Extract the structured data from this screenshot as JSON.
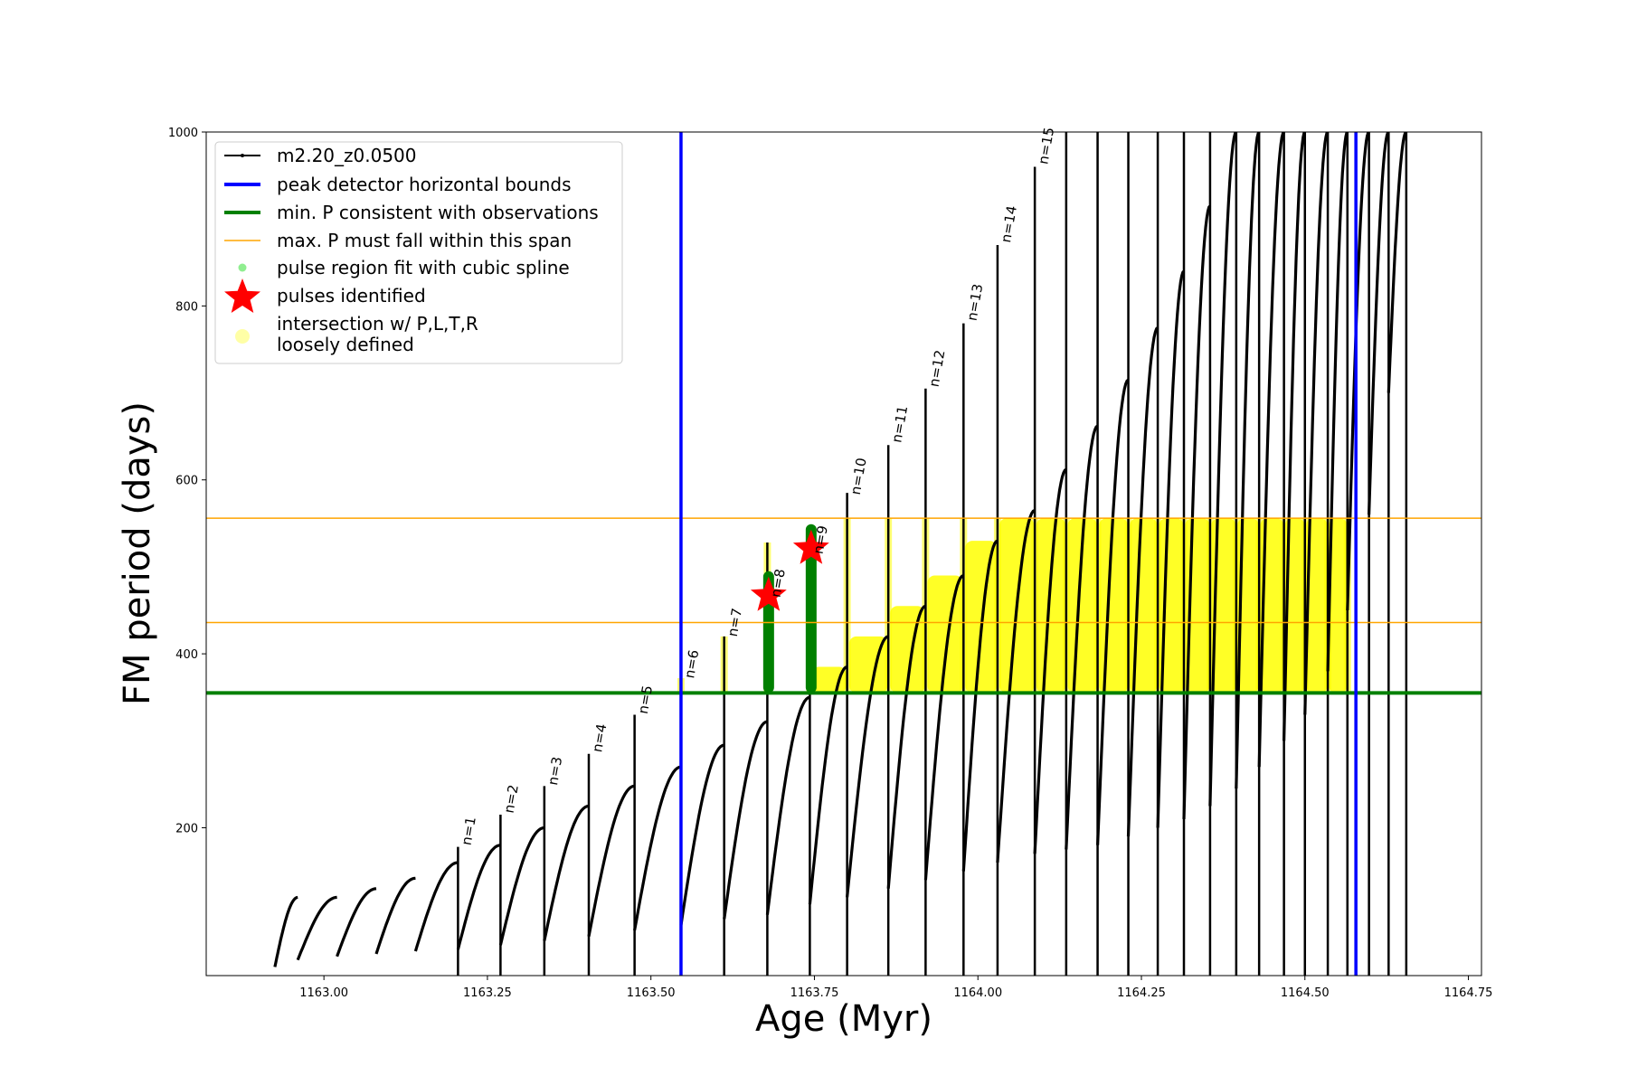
{
  "chart_data": {
    "type": "line",
    "xlabel": "Age (Myr)",
    "ylabel": "FM period (days)",
    "xlim": [
      1162.82,
      1164.77
    ],
    "ylim": [
      30,
      1000
    ],
    "x_ticks": [
      "1163.00",
      "1163.25",
      "1163.50",
      "1163.75",
      "1164.00",
      "1164.25",
      "1164.50",
      "1164.75"
    ],
    "y_ticks": [
      "200",
      "400",
      "600",
      "800",
      "1000"
    ],
    "grid": false,
    "legend_position": "upper-left",
    "series_colors": {
      "track": "#000000",
      "bounds": "#0000ff",
      "min_p": "#008000",
      "max_p": "#ffa500",
      "spline": "#90ee90",
      "pulses": "#ff0000",
      "loose": "#ffff00"
    },
    "legend": [
      {
        "key": "track",
        "label": "m2.20_z0.0500"
      },
      {
        "key": "bounds",
        "label": "peak detector horizontal bounds"
      },
      {
        "key": "min_p",
        "label": "min. P consistent with observations"
      },
      {
        "key": "max_p",
        "label": "max. P must fall within this span"
      },
      {
        "key": "spline",
        "label": "pulse region fit with cubic spline"
      },
      {
        "key": "pulses",
        "label": "pulses identified"
      },
      {
        "key": "loose",
        "label": "intersection w/ P,L,T,R",
        "label2": "loosely defined"
      }
    ],
    "vertical_bounds": [
      1163.546,
      1164.578
    ],
    "min_period": 355,
    "max_period_span": [
      436,
      556
    ],
    "pulses_identified": [
      {
        "x": 1163.68,
        "y": 467
      },
      {
        "x": 1163.745,
        "y": 521
      }
    ],
    "cycles": [
      {
        "start": 1162.925,
        "end": 1162.96,
        "y_low": 40,
        "y_peak": 120
      },
      {
        "start": 1162.96,
        "end": 1163.02,
        "y_low": 48,
        "y_peak": 120
      },
      {
        "start": 1163.02,
        "end": 1163.08,
        "y_low": 52,
        "y_peak": 130
      },
      {
        "start": 1163.08,
        "end": 1163.14,
        "y_low": 55,
        "y_peak": 142
      },
      {
        "start": 1163.14,
        "end": 1163.205,
        "y_low": 58,
        "y_peak": 160
      },
      {
        "start": 1163.205,
        "end": 1163.27,
        "y_low": 60,
        "y_peak": 180
      },
      {
        "start": 1163.27,
        "end": 1163.337,
        "y_low": 65,
        "y_peak": 200
      },
      {
        "start": 1163.337,
        "end": 1163.405,
        "y_low": 70,
        "y_peak": 225
      },
      {
        "start": 1163.405,
        "end": 1163.475,
        "y_low": 75,
        "y_peak": 248
      },
      {
        "start": 1163.475,
        "end": 1163.546,
        "y_low": 82,
        "y_peak": 270
      },
      {
        "start": 1163.546,
        "end": 1163.612,
        "y_low": 88,
        "y_peak": 295
      },
      {
        "start": 1163.612,
        "end": 1163.678,
        "y_low": 95,
        "y_peak": 322
      },
      {
        "start": 1163.678,
        "end": 1163.743,
        "y_low": 100,
        "y_peak": 350
      },
      {
        "start": 1163.743,
        "end": 1163.8,
        "y_low": 112,
        "y_peak": 385
      },
      {
        "start": 1163.8,
        "end": 1163.863,
        "y_low": 120,
        "y_peak": 420
      },
      {
        "start": 1163.863,
        "end": 1163.92,
        "y_low": 130,
        "y_peak": 455
      },
      {
        "start": 1163.92,
        "end": 1163.978,
        "y_low": 140,
        "y_peak": 490
      },
      {
        "start": 1163.978,
        "end": 1164.03,
        "y_low": 150,
        "y_peak": 530
      },
      {
        "start": 1164.03,
        "end": 1164.087,
        "y_low": 160,
        "y_peak": 565
      },
      {
        "start": 1164.087,
        "end": 1164.135,
        "y_low": 170,
        "y_peak": 612
      },
      {
        "start": 1164.135,
        "end": 1164.183,
        "y_low": 175,
        "y_peak": 662
      },
      {
        "start": 1164.183,
        "end": 1164.23,
        "y_low": 180,
        "y_peak": 715
      },
      {
        "start": 1164.23,
        "end": 1164.275,
        "y_low": 190,
        "y_peak": 775
      },
      {
        "start": 1164.275,
        "end": 1164.315,
        "y_low": 200,
        "y_peak": 840
      },
      {
        "start": 1164.315,
        "end": 1164.355,
        "y_low": 210,
        "y_peak": 915
      },
      {
        "start": 1164.355,
        "end": 1164.395,
        "y_low": 225,
        "y_peak": 1000
      },
      {
        "start": 1164.395,
        "end": 1164.43,
        "y_low": 245,
        "y_peak": 1000
      },
      {
        "start": 1164.43,
        "end": 1164.468,
        "y_low": 270,
        "y_peak": 1000
      },
      {
        "start": 1164.468,
        "end": 1164.5,
        "y_low": 300,
        "y_peak": 1000
      },
      {
        "start": 1164.5,
        "end": 1164.535,
        "y_low": 330,
        "y_peak": 1000
      },
      {
        "start": 1164.535,
        "end": 1164.565,
        "y_low": 380,
        "y_peak": 1000
      },
      {
        "start": 1164.565,
        "end": 1164.598,
        "y_low": 450,
        "y_peak": 1000
      },
      {
        "start": 1164.598,
        "end": 1164.628,
        "y_low": 560,
        "y_peak": 1000
      },
      {
        "start": 1164.628,
        "end": 1164.655,
        "y_low": 700,
        "y_peak": 1000
      }
    ],
    "spikes": [
      {
        "x": 1163.205,
        "top": 178
      },
      {
        "x": 1163.27,
        "top": 215
      },
      {
        "x": 1163.337,
        "top": 248
      },
      {
        "x": 1163.405,
        "top": 285
      },
      {
        "x": 1163.475,
        "top": 330
      },
      {
        "x": 1163.546,
        "top": 372
      },
      {
        "x": 1163.612,
        "top": 420
      },
      {
        "x": 1163.678,
        "top": 528
      },
      {
        "x": 1163.743,
        "top": 510
      },
      {
        "x": 1163.8,
        "top": 585
      },
      {
        "x": 1163.863,
        "top": 640
      },
      {
        "x": 1163.92,
        "top": 705
      },
      {
        "x": 1163.978,
        "top": 780
      },
      {
        "x": 1164.03,
        "top": 870
      },
      {
        "x": 1164.087,
        "top": 960
      },
      {
        "x": 1164.135,
        "top": 1000
      },
      {
        "x": 1164.183,
        "top": 1000
      },
      {
        "x": 1164.23,
        "top": 1000
      },
      {
        "x": 1164.275,
        "top": 1000
      },
      {
        "x": 1164.315,
        "top": 1000
      },
      {
        "x": 1164.355,
        "top": 1000
      },
      {
        "x": 1164.395,
        "top": 1000
      },
      {
        "x": 1164.43,
        "top": 1000
      },
      {
        "x": 1164.468,
        "top": 1000
      },
      {
        "x": 1164.5,
        "top": 1000
      },
      {
        "x": 1164.535,
        "top": 1000
      },
      {
        "x": 1164.565,
        "top": 1000
      },
      {
        "x": 1164.598,
        "top": 1000
      },
      {
        "x": 1164.628,
        "top": 1000
      },
      {
        "x": 1164.655,
        "top": 1000
      }
    ],
    "pulse_labels": [
      {
        "n": "n=1",
        "x": 1163.205,
        "y": 175
      },
      {
        "n": "n=2",
        "x": 1163.27,
        "y": 212
      },
      {
        "n": "n=3",
        "x": 1163.337,
        "y": 244
      },
      {
        "n": "n=4",
        "x": 1163.405,
        "y": 282
      },
      {
        "n": "n=5",
        "x": 1163.475,
        "y": 326
      },
      {
        "n": "n=6",
        "x": 1163.546,
        "y": 367
      },
      {
        "n": "n=7",
        "x": 1163.612,
        "y": 415
      },
      {
        "n": "n=8",
        "x": 1163.678,
        "y": 460
      },
      {
        "n": "n=9",
        "x": 1163.743,
        "y": 510
      },
      {
        "n": "n=10",
        "x": 1163.8,
        "y": 578
      },
      {
        "n": "n=11",
        "x": 1163.863,
        "y": 638
      },
      {
        "n": "n=12",
        "x": 1163.92,
        "y": 702
      },
      {
        "n": "n=13",
        "x": 1163.978,
        "y": 778
      },
      {
        "n": "n=14",
        "x": 1164.03,
        "y": 868
      },
      {
        "n": "n=15",
        "x": 1164.087,
        "y": 958
      }
    ]
  }
}
